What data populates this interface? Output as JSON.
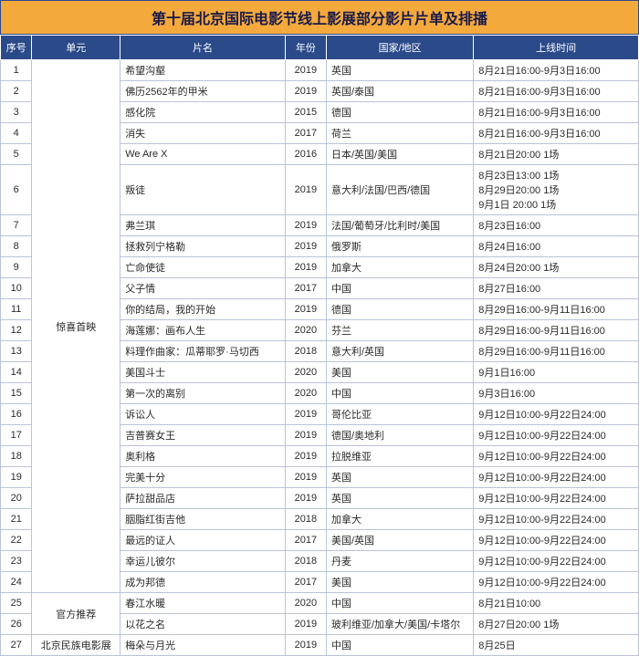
{
  "title": "第十届北京国际电影节线上影展部分影片片单及排播",
  "columns": [
    "序号",
    "单元",
    "片名",
    "年份",
    "国家/地区",
    "上线时间"
  ],
  "units": [
    {
      "label": "惊喜首映",
      "start": 1,
      "span": 24
    },
    {
      "label": "官方推荐",
      "start": 25,
      "span": 2
    },
    {
      "label": "北京民族电影展",
      "start": 27,
      "span": 1
    }
  ],
  "rows": [
    {
      "seq": 1,
      "name": "希望沟壑",
      "year": 2019,
      "country": "英国",
      "time": "8月21日16:00-9月3日16:00"
    },
    {
      "seq": 2,
      "name": "佛历2562年的甲米",
      "year": 2019,
      "country": "英国/泰国",
      "time": "8月21日16:00-9月3日16:00"
    },
    {
      "seq": 3,
      "name": "感化院",
      "year": 2015,
      "country": "德国",
      "time": "8月21日16:00-9月3日16:00"
    },
    {
      "seq": 4,
      "name": "消失",
      "year": 2017,
      "country": "荷兰",
      "time": "8月21日16:00-9月3日16:00"
    },
    {
      "seq": 5,
      "name": "We Are X",
      "year": 2016,
      "country": "日本/英国/美国",
      "time": "8月21日20:00 1场"
    },
    {
      "seq": 6,
      "name": "叛徒",
      "year": 2019,
      "country": "意大利/法国/巴西/德国",
      "time": "8月23日13:00 1场\n8月29日20:00 1场\n9月1日 20:00 1场"
    },
    {
      "seq": 7,
      "name": "弗兰琪",
      "year": 2019,
      "country": "法国/葡萄牙/比利时/美国",
      "time": "8月23日16:00"
    },
    {
      "seq": 8,
      "name": "拯救列宁格勒",
      "year": 2019,
      "country": "俄罗斯",
      "time": "8月24日16:00"
    },
    {
      "seq": 9,
      "name": "亡命使徒",
      "year": 2019,
      "country": "加拿大",
      "time": "8月24日20:00 1场"
    },
    {
      "seq": 10,
      "name": "父子情",
      "year": 2017,
      "country": "中国",
      "time": "8月27日16:00"
    },
    {
      "seq": 11,
      "name": "你的结局，我的开始",
      "year": 2019,
      "country": "德国",
      "time": "8月29日16:00-9月11日16:00"
    },
    {
      "seq": 12,
      "name": "海莲娜：画布人生",
      "year": 2020,
      "country": "芬兰",
      "time": "8月29日16:00-9月11日16:00"
    },
    {
      "seq": 13,
      "name": "料理作曲家：瓜蒂耶罗·马切西",
      "year": 2018,
      "country": "意大利/英国",
      "time": "8月29日16:00-9月11日16:00"
    },
    {
      "seq": 14,
      "name": "美国斗士",
      "year": 2020,
      "country": "美国",
      "time": "9月1日16:00"
    },
    {
      "seq": 15,
      "name": "第一次的离别",
      "year": 2020,
      "country": "中国",
      "time": "9月3日16:00"
    },
    {
      "seq": 16,
      "name": "诉讼人",
      "year": 2019,
      "country": "哥伦比亚",
      "time": "9月12日10:00-9月22日24:00"
    },
    {
      "seq": 17,
      "name": "吉普赛女王",
      "year": 2019,
      "country": "德国/奥地利",
      "time": "9月12日10:00-9月22日24:00"
    },
    {
      "seq": 18,
      "name": "奥利格",
      "year": 2019,
      "country": "拉脱维亚",
      "time": "9月12日10:00-9月22日24:00"
    },
    {
      "seq": 19,
      "name": "完美十分",
      "year": 2019,
      "country": "英国",
      "time": "9月12日10:00-9月22日24:00"
    },
    {
      "seq": 20,
      "name": "萨拉甜品店",
      "year": 2019,
      "country": "英国",
      "time": "9月12日10:00-9月22日24:00"
    },
    {
      "seq": 21,
      "name": "胭脂红街吉他",
      "year": 2018,
      "country": "加拿大",
      "time": "9月12日10:00-9月22日24:00"
    },
    {
      "seq": 22,
      "name": "最远的证人",
      "year": 2017,
      "country": "美国/英国",
      "time": "9月12日10:00-9月22日24:00"
    },
    {
      "seq": 23,
      "name": "幸运儿彼尔",
      "year": 2018,
      "country": "丹麦",
      "time": "9月12日10:00-9月22日24:00"
    },
    {
      "seq": 24,
      "name": "成为邦德",
      "year": 2017,
      "country": "美国",
      "time": "9月12日10:00-9月22日24:00"
    },
    {
      "seq": 25,
      "name": "春江水暖",
      "year": 2020,
      "country": "中国",
      "time": "8月21日10:00"
    },
    {
      "seq": 26,
      "name": "以花之名",
      "year": 2019,
      "country": "玻利维亚/加拿大/美国/卡塔尔",
      "time": "8月27日20:00 1场"
    },
    {
      "seq": 27,
      "name": "梅朵与月光",
      "year": 2019,
      "country": "中国",
      "time": "8月25日"
    }
  ]
}
